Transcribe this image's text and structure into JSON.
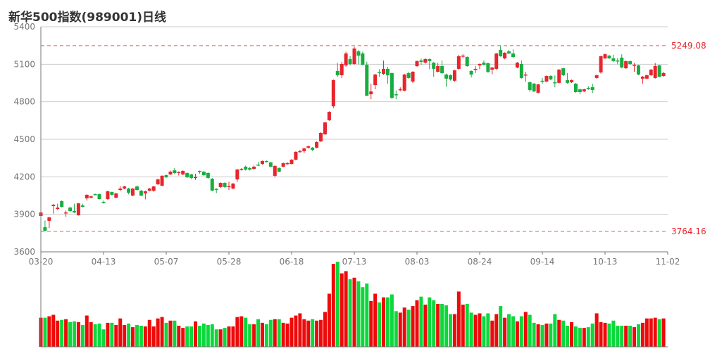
{
  "title": "新华500指数(989001)日线",
  "chart_data": {
    "type": "candlestick",
    "title": "新华500指数(989001)日线",
    "ylim": [
      3600,
      5400
    ],
    "y_ticks": [
      "5400",
      "5100",
      "4800",
      "4500",
      "4200",
      "3900",
      "3600"
    ],
    "y_tick_values": [
      5400,
      5100,
      4800,
      4500,
      4200,
      3900,
      3600
    ],
    "x_ticks": [
      {
        "label": "03-20",
        "index": 0
      },
      {
        "label": "04-13",
        "index": 15
      },
      {
        "label": "05-07",
        "index": 30
      },
      {
        "label": "05-28",
        "index": 45
      },
      {
        "label": "06-18",
        "index": 60
      },
      {
        "label": "07-13",
        "index": 75
      },
      {
        "label": "08-03",
        "index": 90
      },
      {
        "label": "08-24",
        "index": 105
      },
      {
        "label": "09-14",
        "index": 120
      },
      {
        "label": "10-13",
        "index": 135
      },
      {
        "label": "11-02",
        "index": 150
      }
    ],
    "reference_lines": [
      {
        "label": "5249.08",
        "value": 5249.08
      },
      {
        "label": "3764.16",
        "value": 3764.16
      }
    ],
    "grid": true,
    "colors": {
      "up": "#e8242c",
      "down": "#17ad40",
      "vol_up": "#ee0a0a",
      "vol_down": "#0cd83c",
      "ref": "#f0535a",
      "grid": "#cccccc",
      "axis": "#777777"
    },
    "ohlc_fields": [
      "open",
      "high",
      "low",
      "close"
    ],
    "ohlc": [
      [
        3887,
        3925,
        3860,
        3915
      ],
      [
        3797,
        3850,
        3764.16,
        3769
      ],
      [
        3848,
        3880,
        3790,
        3876
      ],
      [
        3966,
        3982,
        3905,
        3977
      ],
      [
        3943,
        3985,
        3935,
        3954
      ],
      [
        4005,
        4012,
        3955,
        3960
      ],
      [
        3909,
        3930,
        3880,
        3915
      ],
      [
        3954,
        3962,
        3920,
        3926
      ],
      [
        3926,
        3985,
        3910,
        3915
      ],
      [
        3892,
        3990,
        3890,
        3988
      ],
      [
        3971,
        3985,
        3955,
        3960
      ],
      [
        4028,
        4060,
        4010,
        4056
      ],
      [
        4033,
        4048,
        4028,
        4044
      ],
      [
        4061,
        4066,
        4052,
        4056
      ],
      [
        4061,
        4066,
        4018,
        4022
      ],
      [
        4000,
        4010,
        3985,
        3994
      ],
      [
        4022,
        4090,
        4015,
        4084
      ],
      [
        4078,
        4082,
        4050,
        4056
      ],
      [
        4033,
        4072,
        4030,
        4067
      ],
      [
        4095,
        4125,
        4085,
        4106
      ],
      [
        4106,
        4128,
        4100,
        4123
      ],
      [
        4106,
        4112,
        4060,
        4073
      ],
      [
        4050,
        4110,
        4045,
        4106
      ],
      [
        4123,
        4130,
        4090,
        4095
      ],
      [
        4089,
        4095,
        4045,
        4050
      ],
      [
        4067,
        4090,
        4020,
        4084
      ],
      [
        4089,
        4112,
        4085,
        4106
      ],
      [
        4089,
        4128,
        4080,
        4123
      ],
      [
        4140,
        4185,
        4135,
        4179
      ],
      [
        4129,
        4212,
        4125,
        4208
      ],
      [
        4213,
        4218,
        4190,
        4196
      ],
      [
        4219,
        4250,
        4214,
        4241
      ],
      [
        4252,
        4270,
        4222,
        4230
      ],
      [
        4235,
        4244,
        4210,
        4238
      ],
      [
        4219,
        4252,
        4214,
        4247
      ],
      [
        4230,
        4236,
        4190,
        4196
      ],
      [
        4219,
        4224,
        4180,
        4191
      ],
      [
        4196,
        4225,
        4175,
        4199
      ],
      [
        4247,
        4250,
        4225,
        4244
      ],
      [
        4241,
        4246,
        4208,
        4213
      ],
      [
        4230,
        4236,
        4185,
        4191
      ],
      [
        4185,
        4190,
        4085,
        4090
      ],
      [
        4104,
        4108,
        4070,
        4101
      ],
      [
        4118,
        4156,
        4112,
        4151
      ],
      [
        4151,
        4156,
        4112,
        4118
      ],
      [
        4123,
        4160,
        4095,
        4126
      ],
      [
        4106,
        4150,
        4100,
        4146
      ],
      [
        4179,
        4264,
        4160,
        4258
      ],
      [
        4258,
        4270,
        4250,
        4264
      ],
      [
        4281,
        4290,
        4250,
        4258
      ],
      [
        4270,
        4278,
        4250,
        4258
      ],
      [
        4264,
        4290,
        4258,
        4281
      ],
      [
        4298,
        4320,
        4285,
        4290
      ],
      [
        4303,
        4330,
        4298,
        4326
      ],
      [
        4326,
        4330,
        4315,
        4323
      ],
      [
        4315,
        4320,
        4275,
        4281
      ],
      [
        4208,
        4292,
        4195,
        4287
      ],
      [
        4270,
        4276,
        4236,
        4241
      ],
      [
        4281,
        4314,
        4276,
        4309
      ],
      [
        4306,
        4318,
        4296,
        4309
      ],
      [
        4303,
        4342,
        4298,
        4337
      ],
      [
        4337,
        4404,
        4332,
        4399
      ],
      [
        4399,
        4416,
        4394,
        4405
      ],
      [
        4405,
        4432,
        4390,
        4427
      ],
      [
        4433,
        4450,
        4425,
        4444
      ],
      [
        4433,
        4438,
        4405,
        4416
      ],
      [
        4433,
        4483,
        4428,
        4478
      ],
      [
        4483,
        4556,
        4478,
        4551
      ],
      [
        4540,
        4640,
        4535,
        4635
      ],
      [
        4652,
        4724,
        4647,
        4719
      ],
      [
        4764,
        4978,
        4750,
        4973
      ],
      [
        5046,
        5110,
        5000,
        5012
      ],
      [
        5012,
        5120,
        4990,
        5102
      ],
      [
        5091,
        5200,
        5080,
        5186
      ],
      [
        5141,
        5165,
        5090,
        5102
      ],
      [
        5102,
        5240,
        5095,
        5226
      ],
      [
        5203,
        5215,
        5100,
        5169
      ],
      [
        5186,
        5200,
        5090,
        5096
      ],
      [
        5096,
        5120,
        4845,
        4849
      ],
      [
        4860,
        4945,
        4820,
        4883
      ],
      [
        4933,
        5023,
        4900,
        5018
      ],
      [
        5040,
        5060,
        5000,
        5035
      ],
      [
        5023,
        5130,
        5015,
        5063
      ],
      [
        5063,
        5080,
        4945,
        5012
      ],
      [
        5029,
        5035,
        4820,
        4832
      ],
      [
        4860,
        4890,
        4820,
        4855
      ],
      [
        4898,
        4915,
        4885,
        4900
      ],
      [
        4889,
        5023,
        4885,
        5018
      ],
      [
        5029,
        5040,
        4985,
        4990
      ],
      [
        4962,
        5045,
        4950,
        5040
      ],
      [
        5085,
        5130,
        5080,
        5125
      ],
      [
        5130,
        5145,
        5095,
        5119
      ],
      [
        5113,
        5150,
        5105,
        5141
      ],
      [
        5141,
        5146,
        5060,
        5125
      ],
      [
        5113,
        5118,
        5000,
        5063
      ],
      [
        5040,
        5110,
        5035,
        5085
      ],
      [
        5085,
        5130,
        5020,
        5029
      ],
      [
        5018,
        5025,
        4920,
        4985
      ],
      [
        5012,
        5018,
        4970,
        4979
      ],
      [
        4968,
        5056,
        4960,
        5051
      ],
      [
        5063,
        5175,
        5055,
        5164
      ],
      [
        5164,
        5180,
        5150,
        5169
      ],
      [
        5158,
        5163,
        5080,
        5085
      ],
      [
        5046,
        5051,
        4995,
        5018
      ],
      [
        5060,
        5085,
        5030,
        5063
      ],
      [
        5091,
        5106,
        5060,
        5102
      ],
      [
        5113,
        5130,
        5090,
        5096
      ],
      [
        5108,
        5113,
        5030,
        5040
      ],
      [
        5057,
        5078,
        5020,
        5074
      ],
      [
        5063,
        5190,
        5055,
        5186
      ],
      [
        5214,
        5249.08,
        5160,
        5164
      ],
      [
        5147,
        5196,
        5140,
        5192
      ],
      [
        5203,
        5215,
        5180,
        5186
      ],
      [
        5186,
        5220,
        5150,
        5158
      ],
      [
        5074,
        5118,
        5068,
        5113
      ],
      [
        5102,
        5130,
        4985,
        4990
      ],
      [
        5012,
        5040,
        4960,
        5018
      ],
      [
        4956,
        4962,
        4880,
        4894
      ],
      [
        4945,
        4950,
        4878,
        4883
      ],
      [
        4872,
        4944,
        4866,
        4939
      ],
      [
        4968,
        4990,
        4945,
        4962
      ],
      [
        4962,
        5010,
        4956,
        5006
      ],
      [
        5006,
        5012,
        4972,
        4979
      ],
      [
        4956,
        5010,
        4915,
        4953
      ],
      [
        4951,
        5062,
        4946,
        5057
      ],
      [
        5068,
        5073,
        5006,
        5012
      ],
      [
        4973,
        5030,
        4945,
        4951
      ],
      [
        4956,
        4978,
        4950,
        4973
      ],
      [
        4945,
        4950,
        4872,
        4877
      ],
      [
        4900,
        4906,
        4860,
        4877
      ],
      [
        4883,
        4905,
        4878,
        4900
      ],
      [
        4911,
        4925,
        4895,
        4905
      ],
      [
        4917,
        4945,
        4870,
        4894
      ],
      [
        4990,
        5017,
        4985,
        5012
      ],
      [
        5035,
        5168,
        5025,
        5164
      ],
      [
        5147,
        5185,
        5142,
        5180
      ],
      [
        5169,
        5174,
        5142,
        5147
      ],
      [
        5147,
        5175,
        5120,
        5125
      ],
      [
        5130,
        5150,
        5100,
        5125
      ],
      [
        5153,
        5180,
        5068,
        5074
      ],
      [
        5068,
        5130,
        5062,
        5125
      ],
      [
        5125,
        5130,
        5095,
        5102
      ],
      [
        5096,
        5110,
        5040,
        5096
      ],
      [
        5091,
        5096,
        5012,
        5018
      ],
      [
        4985,
        5006,
        4945,
        5001
      ],
      [
        4985,
        5017,
        4980,
        5012
      ],
      [
        5012,
        5062,
        5007,
        5057
      ],
      [
        4990,
        5110,
        4985,
        5085
      ],
      [
        5091,
        5096,
        4995,
        5001
      ],
      [
        5006,
        5040,
        5000,
        5029
      ]
    ],
    "volume_relative": [
      40,
      40,
      42,
      44,
      36,
      37,
      38,
      34,
      35,
      34,
      30,
      43,
      34,
      31,
      32,
      24,
      33,
      33,
      30,
      39,
      30,
      32,
      27,
      30,
      29,
      28,
      37,
      28,
      39,
      41,
      33,
      36,
      36,
      29,
      26,
      28,
      28,
      35,
      29,
      32,
      30,
      31,
      24,
      24,
      26,
      28,
      28,
      41,
      42,
      40,
      31,
      31,
      38,
      33,
      31,
      37,
      38,
      38,
      33,
      32,
      40,
      43,
      46,
      38,
      36,
      38,
      36,
      37,
      48,
      73,
      114,
      117,
      101,
      104,
      93,
      95,
      90,
      82,
      87,
      63,
      73,
      61,
      68,
      68,
      72,
      49,
      47,
      54,
      51,
      56,
      64,
      69,
      58,
      68,
      64,
      59,
      59,
      57,
      45,
      45,
      76,
      58,
      59,
      47,
      44,
      46,
      42,
      46,
      36,
      45,
      56,
      40,
      45,
      42,
      35,
      42,
      48,
      44,
      33,
      31,
      30,
      32,
      32,
      45,
      37,
      36,
      29,
      34,
      28,
      26,
      26,
      27,
      32,
      46,
      34,
      33,
      32,
      36,
      29,
      29,
      29,
      29,
      27,
      31,
      33,
      39,
      39,
      40,
      38,
      39
    ]
  }
}
